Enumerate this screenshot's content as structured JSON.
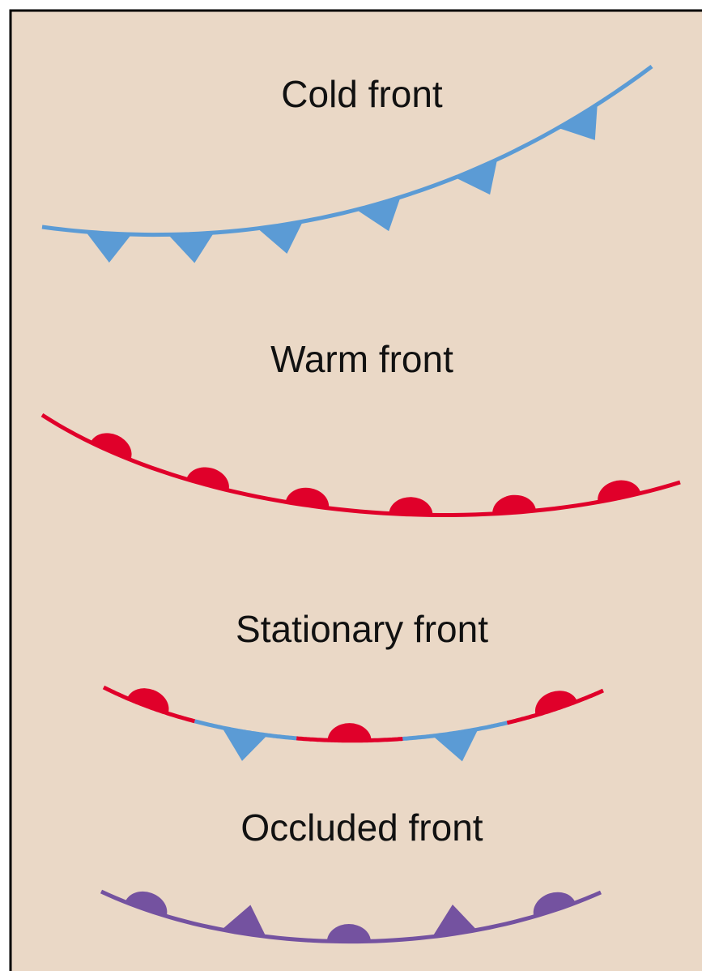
{
  "fronts": [
    {
      "label": "Cold front"
    },
    {
      "label": "Warm front"
    },
    {
      "label": "Stationary front"
    },
    {
      "label": "Occluded front"
    }
  ]
}
